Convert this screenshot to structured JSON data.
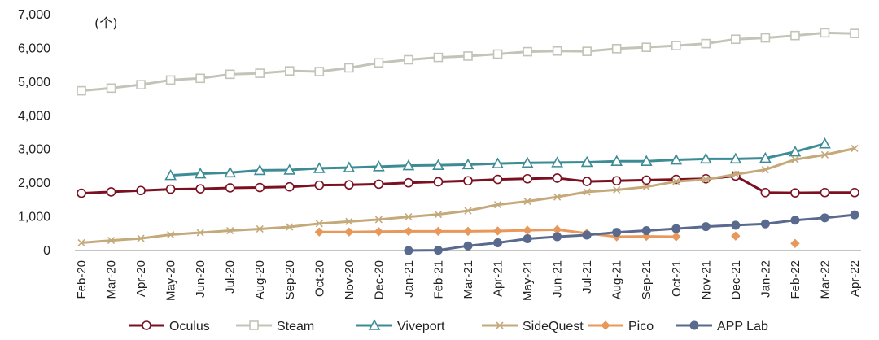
{
  "chart_data": {
    "type": "line",
    "unit": "(个)",
    "ylim": [
      0,
      7000
    ],
    "yticks": [
      0,
      1000,
      2000,
      3000,
      4000,
      5000,
      6000,
      7000
    ],
    "ytick_labels": [
      "0",
      "1,000",
      "2,000",
      "3,000",
      "4,000",
      "5,000",
      "6,000",
      "7,000"
    ],
    "grid": false,
    "legend_position": "bottom",
    "categories": [
      "Feb-20",
      "Mar-20",
      "Apr-20",
      "May-20",
      "Jun-20",
      "Jul-20",
      "Aug-20",
      "Sep-20",
      "Oct-20",
      "Nov-20",
      "Dec-20",
      "Jan-21",
      "Feb-21",
      "Mar-21",
      "Apr-21",
      "May-21",
      "Jun-21",
      "Jul-21",
      "Aug-21",
      "Sep-21",
      "Oct-21",
      "Nov-21",
      "Dec-21",
      "Jan-22",
      "Feb-22",
      "Mar-22",
      "Apr-22"
    ],
    "series": [
      {
        "name": "Oculus",
        "color": "#7a1020",
        "marker": "circle",
        "values": [
          1700,
          1740,
          1780,
          1820,
          1830,
          1860,
          1870,
          1890,
          1940,
          1950,
          1970,
          2010,
          2040,
          2070,
          2110,
          2130,
          2150,
          2050,
          2070,
          2090,
          2110,
          2130,
          2210,
          1720,
          1710,
          1720,
          1720
        ]
      },
      {
        "name": "Steam",
        "color": "#c2c4b8",
        "marker": "square",
        "values": [
          4740,
          4820,
          4920,
          5060,
          5110,
          5230,
          5260,
          5330,
          5310,
          5420,
          5570,
          5660,
          5730,
          5770,
          5830,
          5900,
          5920,
          5910,
          5990,
          6030,
          6080,
          6140,
          6270,
          6310,
          6380,
          6460,
          6440
        ]
      },
      {
        "name": "Viveport",
        "color": "#3d8c95",
        "marker": "triangle",
        "values": [
          null,
          null,
          null,
          2230,
          2280,
          2310,
          2380,
          2390,
          2440,
          2460,
          2490,
          2520,
          2530,
          2550,
          2580,
          2600,
          2610,
          2620,
          2650,
          2650,
          2690,
          2720,
          2720,
          2740,
          2930,
          3170,
          null
        ]
      },
      {
        "name": "SideQuest",
        "color": "#c4a97a",
        "marker": "x",
        "values": [
          230,
          300,
          360,
          470,
          530,
          590,
          640,
          700,
          800,
          860,
          920,
          1000,
          1070,
          1180,
          1360,
          1460,
          1590,
          1740,
          1800,
          1890,
          2050,
          2110,
          2260,
          2400,
          2700,
          2840,
          3030
        ]
      },
      {
        "name": "Pico",
        "color": "#e8985a",
        "marker": "diamond",
        "values": [
          null,
          null,
          null,
          null,
          null,
          null,
          null,
          null,
          550,
          550,
          560,
          570,
          570,
          570,
          580,
          600,
          620,
          510,
          410,
          420,
          410,
          null,
          430,
          null,
          210,
          null,
          null
        ]
      },
      {
        "name": "APP Lab",
        "color": "#5a6a8e",
        "marker": "circle-filled",
        "values": [
          null,
          null,
          null,
          null,
          null,
          null,
          null,
          null,
          null,
          null,
          null,
          0,
          10,
          140,
          230,
          350,
          410,
          460,
          540,
          590,
          650,
          710,
          750,
          790,
          900,
          970,
          1060
        ]
      }
    ]
  }
}
